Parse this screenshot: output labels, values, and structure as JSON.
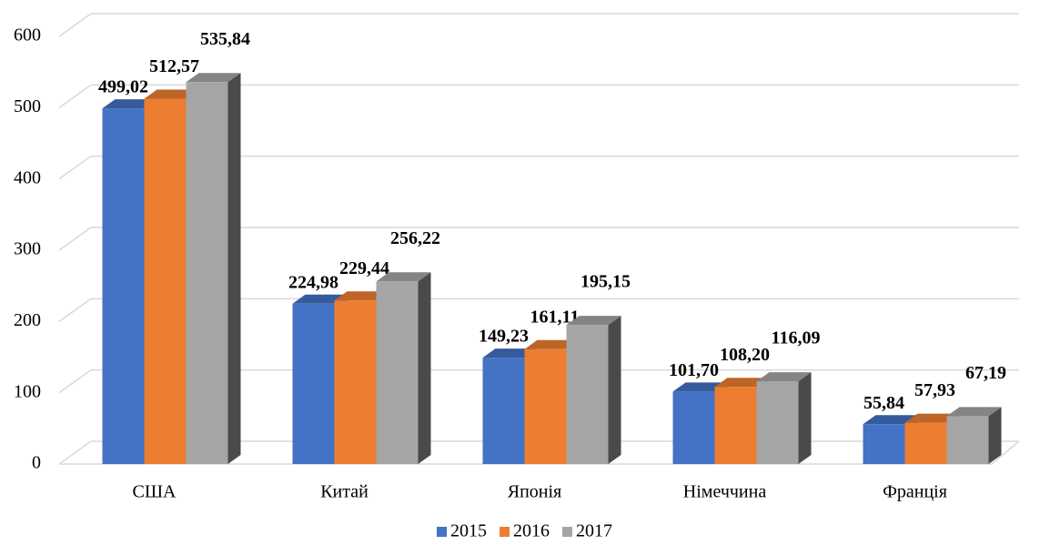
{
  "chart_data": {
    "type": "bar",
    "categories": [
      "США",
      "Китай",
      "Японія",
      "Німеччина",
      "Франція"
    ],
    "series": [
      {
        "name": "2015",
        "color": "#4472c4",
        "values": [
          499.02,
          224.98,
          149.23,
          101.7,
          55.84
        ],
        "value_labels": [
          "499,02",
          "224,98",
          "149,23",
          "101,70",
          "55,84"
        ]
      },
      {
        "name": "2016",
        "color": "#ed7d31",
        "values": [
          512.57,
          229.44,
          161.11,
          108.2,
          57.93
        ],
        "value_labels": [
          "512,57",
          "229,44",
          "161,11",
          "108,20",
          "57,93"
        ]
      },
      {
        "name": "2017",
        "color": "#a5a5a5",
        "values": [
          535.84,
          256.22,
          195.15,
          116.09,
          67.19
        ],
        "value_labels": [
          "535,84",
          "256,22",
          "195,15",
          "116,09",
          "67,19"
        ]
      }
    ],
    "ylim": [
      0,
      600
    ],
    "yticks": [
      0,
      100,
      200,
      300,
      400,
      500,
      600
    ],
    "grid": true,
    "legend": "bottom"
  }
}
